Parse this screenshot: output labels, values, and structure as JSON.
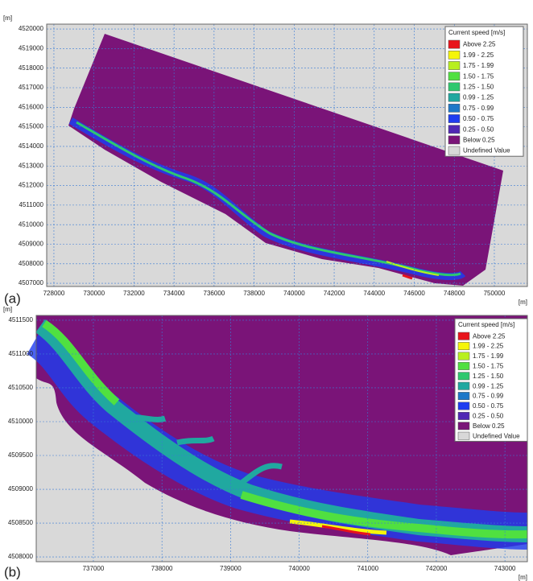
{
  "panels": [
    {
      "label": "(a)",
      "unit_y": "[m]",
      "unit_x": "[m]",
      "xlim": [
        727640,
        751650
      ],
      "ylim": [
        4506840,
        4520250
      ],
      "xticks": [
        728000,
        730000,
        732000,
        734000,
        736000,
        738000,
        740000,
        742000,
        744000,
        746000,
        748000,
        750000
      ],
      "yticks": [
        4507000,
        4508000,
        4509000,
        4510000,
        4511000,
        4512000,
        4513000,
        4514000,
        4515000,
        4516000,
        4517000,
        4518000,
        4519000,
        4520000
      ],
      "legend": {
        "title": "Current speed [m/s]",
        "items": [
          {
            "label": "Above 2.25",
            "color": "#e8141c"
          },
          {
            "label": "1.99 - 2.25",
            "color": "#f5f50a"
          },
          {
            "label": "1.75 - 1.99",
            "color": "#b8f01e"
          },
          {
            "label": "1.50 - 1.75",
            "color": "#50e040"
          },
          {
            "label": "1.25 - 1.50",
            "color": "#2ec86e"
          },
          {
            "label": "0.99 - 1.25",
            "color": "#20a8a0"
          },
          {
            "label": "0.75 - 0.99",
            "color": "#1e78c8"
          },
          {
            "label": "0.50 - 0.75",
            "color": "#1e3cf0"
          },
          {
            "label": "0.25 - 0.50",
            "color": "#5028b4"
          },
          {
            "label": "Below 0.25",
            "color": "#7a1478"
          },
          {
            "label": "Undefined Value",
            "color": "#d8d8d8"
          }
        ]
      }
    },
    {
      "label": "(b)",
      "unit_y": "[m]",
      "unit_x": "[m]",
      "xlim": [
        736167,
        743327
      ],
      "ylim": [
        4507929,
        4511571
      ],
      "xticks": [
        737000,
        738000,
        739000,
        740000,
        741000,
        742000,
        743000
      ],
      "yticks": [
        4508000,
        4508500,
        4509000,
        4509500,
        4510000,
        4510500,
        4511000,
        4511500
      ],
      "legend": {
        "title": "Current speed [m/s]",
        "items": [
          {
            "label": "Above 2.25",
            "color": "#e8141c"
          },
          {
            "label": "1.99 - 2.25",
            "color": "#f5f50a"
          },
          {
            "label": "1.75 - 1.99",
            "color": "#b8f01e"
          },
          {
            "label": "1.50 - 1.75",
            "color": "#50e040"
          },
          {
            "label": "1.25 - 1.50",
            "color": "#2ec86e"
          },
          {
            "label": "0.99 - 1.25",
            "color": "#20a8a0"
          },
          {
            "label": "0.75 - 0.99",
            "color": "#1e78c8"
          },
          {
            "label": "0.50 - 0.75",
            "color": "#1e3cf0"
          },
          {
            "label": "0.25 - 0.50",
            "color": "#5028b4"
          },
          {
            "label": "Below 0.25",
            "color": "#7a1478"
          },
          {
            "label": "Undefined Value",
            "color": "#d8d8d8"
          }
        ]
      }
    }
  ]
}
